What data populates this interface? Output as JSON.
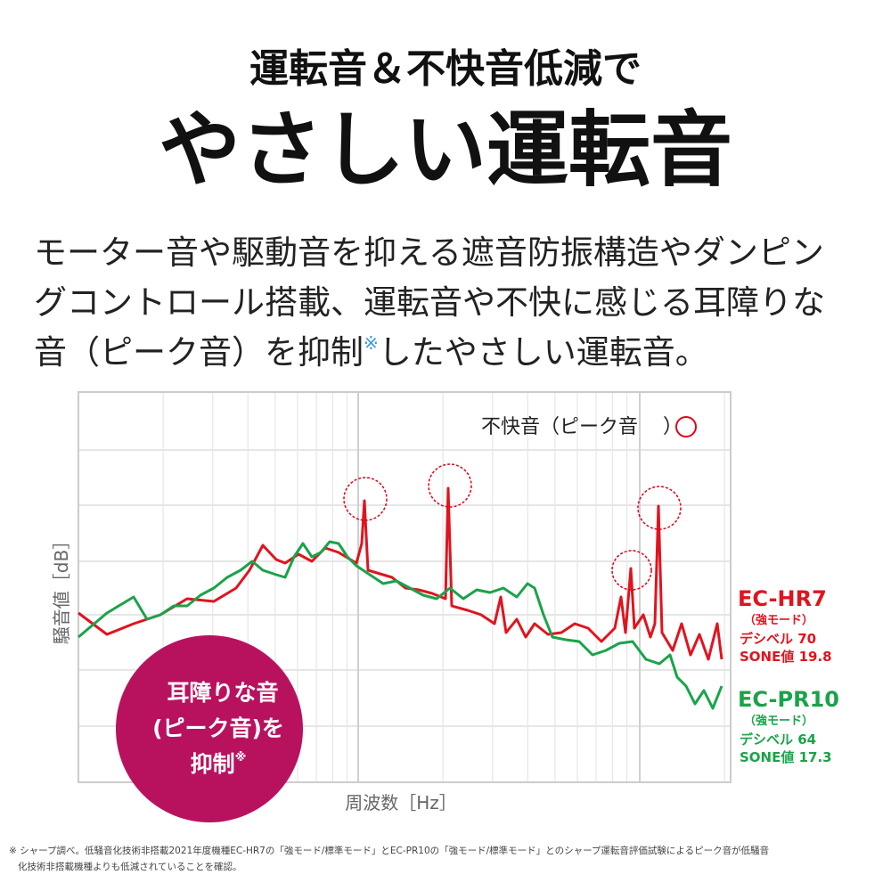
{
  "header": {
    "line1": "運転音＆不快音低減で",
    "line2": "やさしい運転音"
  },
  "body": {
    "lines": [
      "モーター音や駆動音を抑える遮音防振構造やダンピン",
      "グコントロール搭載、運転音や不快に感じる耳障りな"
    ],
    "last_before": "音（ピーク音）を抑制",
    "mark": "※",
    "last_after": "したやさしい運転音。"
  },
  "chart": {
    "peak_label_before": "不快音（ピーク音",
    "peak_label_after": "）",
    "y_label": "騒音値［dB］",
    "x_label": "周波数［Hz］",
    "models": [
      {
        "name": "EC-HR7",
        "mode": "（強モード）",
        "decibel": "デシベル 70",
        "sone": "SONE値 19.8"
      },
      {
        "name": "EC-PR10",
        "mode": "（強モード）",
        "decibel": "デシベル 64",
        "sone": "SONE値 17.3"
      }
    ]
  },
  "badge": {
    "lines": [
      "耳障りな音",
      "(ピーク音)を",
      "抑制"
    ],
    "mark": "※"
  },
  "footnote": {
    "lines": [
      "※ シャープ調べ。低騒音化技術非搭載2021年度機種EC-HR7の「強モード/標準モード」とEC-PR10の「強モード/標準モード」とのシャープ運転音評価試験によるピーク音が低騒音",
      "化技術非搭載機種よりも低減されていることを確認。"
    ]
  }
}
